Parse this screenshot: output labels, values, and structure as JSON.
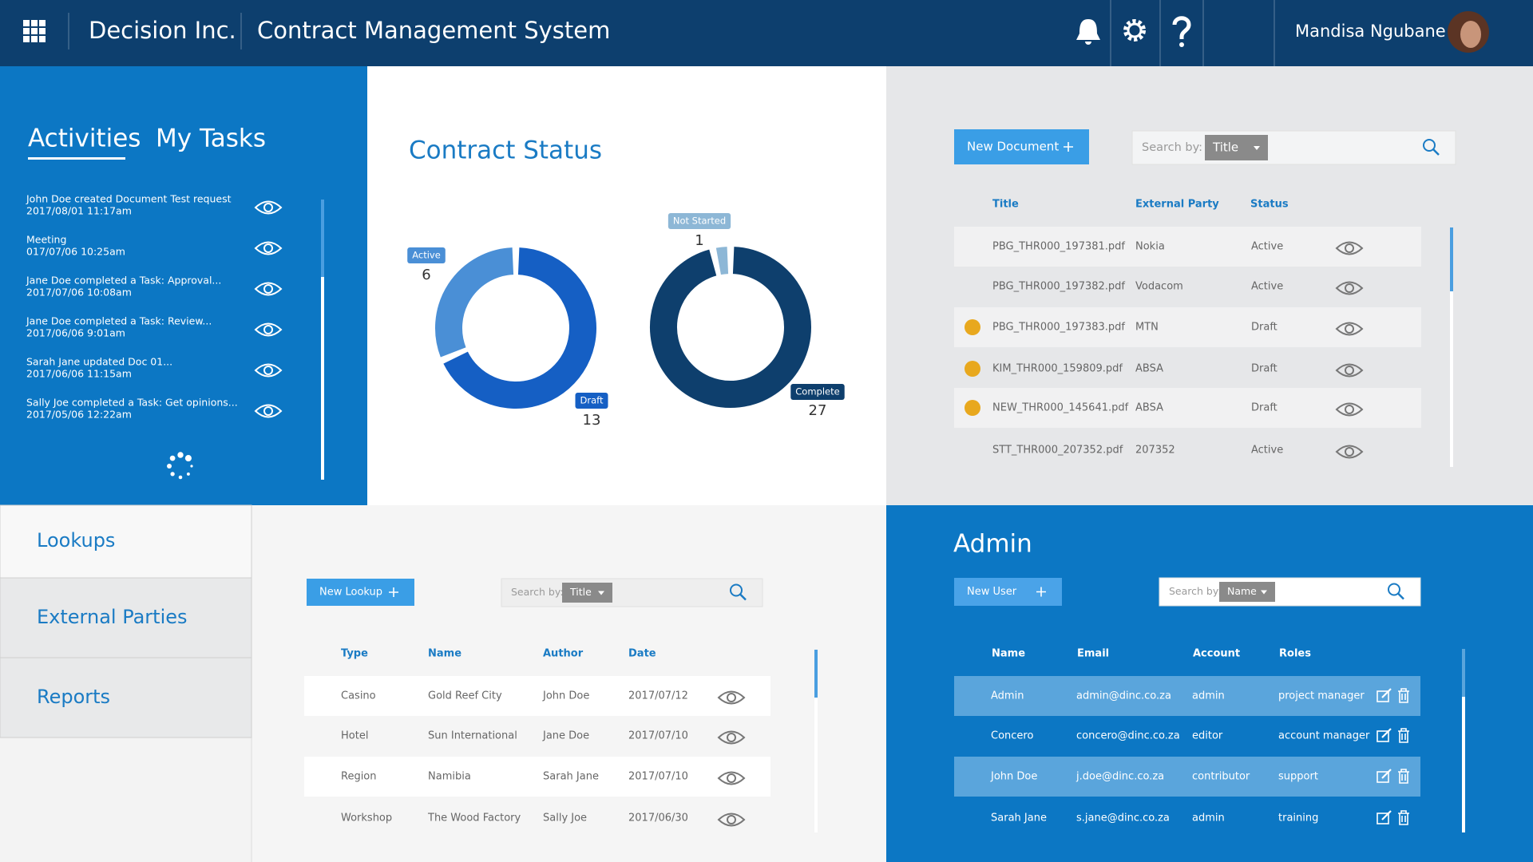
{
  "header": {
    "company": "Decision Inc.",
    "app": "Contract Management System",
    "user": "Mandisa Ngubane"
  },
  "activities": {
    "tabs": [
      "Activities",
      "My Tasks"
    ],
    "items": [
      {
        "text": "John Doe created Document Test request",
        "time": "2017/08/01 11:17am"
      },
      {
        "text": "Meeting",
        "time": "017/07/06 10:25am"
      },
      {
        "text": "Jane Doe completed a Task: Approval...",
        "time": "2017/07/06 10:08am"
      },
      {
        "text": "Jane Doe completed a Task: Review...",
        "time": "2017/06/06 9:01am"
      },
      {
        "text": "Sarah Jane updated Doc 01...",
        "time": "2017/06/06 11:15am"
      },
      {
        "text": "Sally Joe completed a Task: Get opinions...",
        "time": "2017/05/06 12:22am"
      }
    ]
  },
  "contract_status": {
    "title": "Contract Status",
    "charts": [
      {
        "type": "donut",
        "categories": [
          "Active",
          "Draft"
        ],
        "values": [
          6,
          13
        ],
        "colors": [
          "#4a8fd6",
          "#155fc4"
        ]
      },
      {
        "type": "donut",
        "categories": [
          "Not Started",
          "Complete"
        ],
        "values": [
          1,
          27
        ],
        "colors": [
          "#8db7d6",
          "#0e3f6d"
        ]
      }
    ]
  },
  "documents": {
    "new_button": "New Document",
    "search_label": "Search by:",
    "search_field": "Title",
    "columns": [
      "Title",
      "External Party",
      "Status"
    ],
    "rows": [
      [
        "PBG_THR000_197381.pdf",
        "Nokia",
        "Active"
      ],
      [
        "PBG_THR000_197382.pdf",
        "Vodacom",
        "Active"
      ],
      [
        "PBG_THR000_197383.pdf",
        "MTN",
        "Draft"
      ],
      [
        "KIM_THR000_159809.pdf",
        "ABSA",
        "Draft"
      ],
      [
        "NEW_THR000_145641.pdf",
        "ABSA",
        "Draft"
      ],
      [
        "STT_THR000_207352.pdf",
        "207352",
        "Active"
      ]
    ]
  },
  "lookups": {
    "nav": [
      "Lookups",
      "External Parties",
      "Reports"
    ],
    "new_button": "New Lookup",
    "search_label": "Search by:",
    "search_field": "Title",
    "columns": [
      "Type",
      "Name",
      "Author",
      "Date"
    ],
    "rows": [
      [
        "Casino",
        "Gold Reef City",
        "John Doe",
        "2017/07/12"
      ],
      [
        "Hotel",
        "Sun International",
        "Jane Doe",
        "2017/07/10"
      ],
      [
        "Region",
        "Namibia",
        "Sarah Jane",
        "2017/07/10"
      ],
      [
        "Workshop",
        "The Wood Factory",
        "Sally Joe",
        "2017/06/30"
      ]
    ]
  },
  "admin": {
    "title": "Admin",
    "new_button": "New User",
    "search_label": "Search by:",
    "search_field": "Name",
    "columns": [
      "Name",
      "Email",
      "Account",
      "Roles"
    ],
    "rows": [
      [
        "Admin",
        "admin@dinc.co.za",
        "admin",
        "project manager"
      ],
      [
        "Concero",
        "concero@dinc.co.za",
        "editor",
        "account manager"
      ],
      [
        "John Doe",
        "j.doe@dinc.co.za",
        "contributor",
        "support"
      ],
      [
        "Sarah Jane",
        "s.jane@dinc.co.za",
        "admin",
        "training"
      ]
    ]
  }
}
